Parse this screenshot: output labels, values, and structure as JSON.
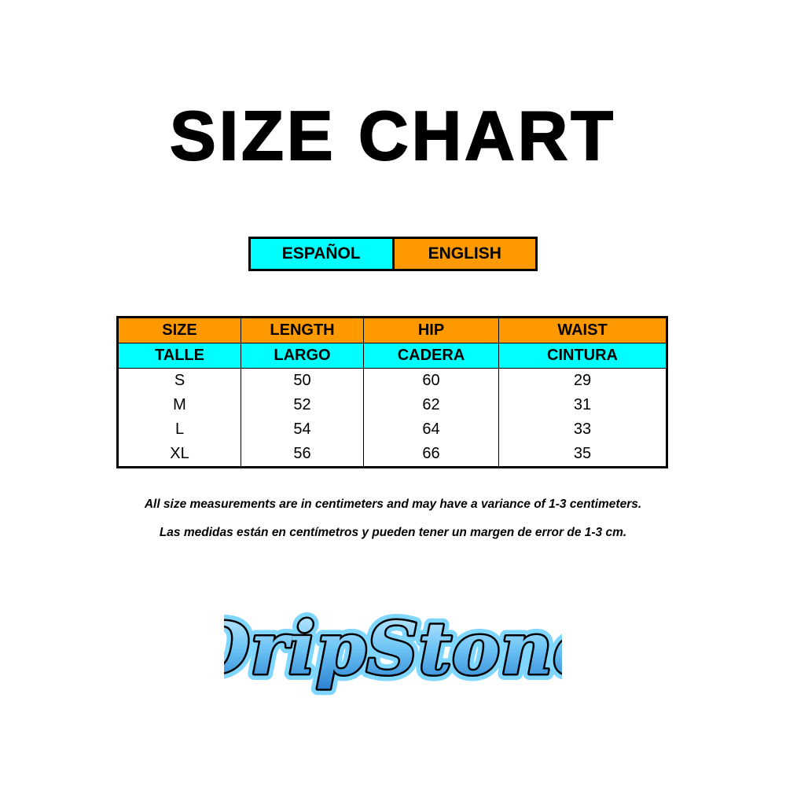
{
  "title": "SIZE CHART",
  "languages": {
    "spanish": "ESPAÑOL",
    "english": "ENGLISH"
  },
  "colors": {
    "english": "#ff9900",
    "spanish": "#00ffff"
  },
  "table": {
    "headers_en": [
      "SIZE",
      "LENGTH",
      "HIP",
      "WAIST"
    ],
    "headers_es": [
      "TALLE",
      "LARGO",
      "CADERA",
      "CINTURA"
    ],
    "rows": [
      [
        "S",
        "50",
        "60",
        "29"
      ],
      [
        "M",
        "52",
        "62",
        "31"
      ],
      [
        "L",
        "54",
        "64",
        "33"
      ],
      [
        "XL",
        "56",
        "66",
        "35"
      ]
    ]
  },
  "notes": {
    "english": "All size measurements are in centimeters and may have a variance of 1-3 centimeters.",
    "spanish": "Las medidas están en centímetros y pueden tener un margen de error de 1-3 cm."
  },
  "logo": {
    "text": "DripStone"
  }
}
